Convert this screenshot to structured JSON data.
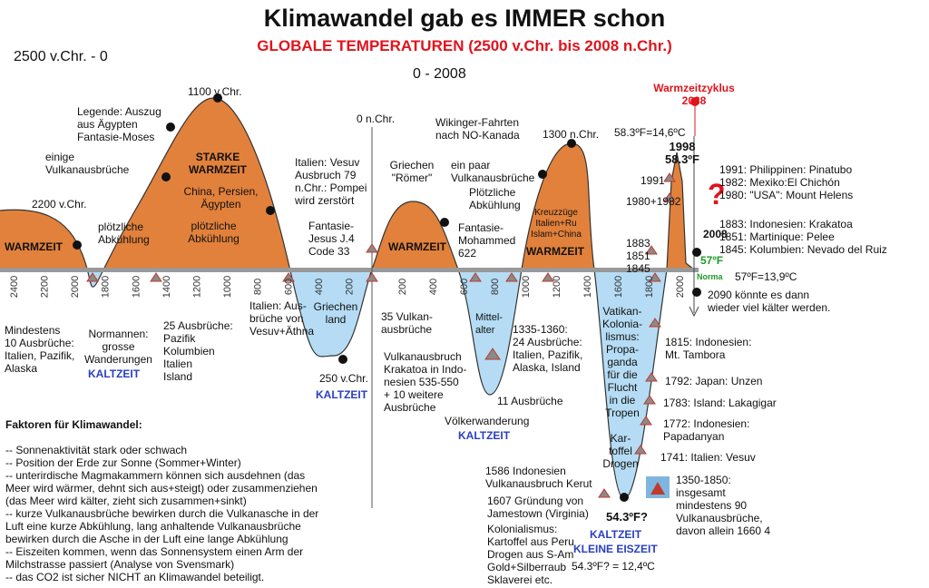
{
  "title": "Klimawandel gab es IMMER schon",
  "subtitle": "GLOBALE TEMPERATUREN (2500 v.Chr. bis 2008 n.Chr.)",
  "range_left": "2500 v.Chr. - 0",
  "range_right": "0 - 2008",
  "axis_left": [
    "2400",
    "2200",
    "2000",
    "1800",
    "1600",
    "1400",
    "1200",
    "1000",
    "800",
    "600",
    "400",
    "200"
  ],
  "axis_right": [
    "200",
    "400",
    "600",
    "800",
    "1000",
    "1200",
    "1400",
    "1600",
    "1800",
    "2000"
  ],
  "above": {
    "peak_1100": "1100 v.Chr.",
    "moses": "Legende: Auszug\naus Ägypten\nFantasie-Moses",
    "einige": "einige\nVulkanausbrüche",
    "starke": "STARKE\nWARMZEIT",
    "china": "China, Persien,\nÄgypten",
    "abk1": "plötzliche\nAbkühlung",
    "v2200": "2200 v.Chr.",
    "abk2": "plötzliche\nAbkühlung",
    "warm1": "WARMZEIT",
    "n0": "0 n.Chr.",
    "vesuv79": "Italien: Vesuv\nAusbruch 79\nn.Chr.: Pompei\nwird zerstört",
    "jesus": "Fantasie-\nJesus J.4\nCode 33",
    "roemer": "Griechen\n\"Römer\"",
    "warm2": "WARMZEIT",
    "wikinger": "Wikinger-Fahrten\nnach NO-Kanada",
    "n1300": "1300 n.Chr.",
    "paar": "ein paar\nVulkanausbrüche",
    "abk3": "Plötzliche\nAbkühlung",
    "mohammed": "Fantasie-\nMohammed\n622",
    "kreuz": "Kreuzzüge\nItalien+Ru\nIslam+China",
    "warm3": "WARMZEIT",
    "zyklus": "Warmzeitzyklus\n2038",
    "f583": "58.3ºF=14,6ºC",
    "y1998": "1998\n58.3ºF",
    "question": "?",
    "y1991": "1991",
    "y1980": "1980+1982",
    "y1883": "1883\n1851\n1845",
    "y2008": "2008",
    "f57": "57ºF",
    "norma": "Norma",
    "f57c": "57ºF=13,9ºC",
    "list1": "1991: Philippinen: Pinatubo\n1982: Mexiko:El Chichón\n1980: \"USA\": Mount Helens",
    "list2": "1883: Indonesien: Krakatoa\n1851: Martinique: Pelee\n1845: Kolumbien: Nevado del Ruiz",
    "y2090": "2090 könnte es dann\nwieder viel kälter werden."
  },
  "below": {
    "mind10": "Mindestens\n10 Ausbrüche:\nItalien, Pazifik,\nAlaska",
    "normannen": "Normannen:\ngrosse\nWanderungen",
    "kalt1": "KALTZEIT",
    "aus25": "25 Ausbrüche:\nPazifik\nKolumbien\nItalien\nIsland",
    "aetna": "Italien: Aus-\nbrüche von\nVesuv+Äthna",
    "griechen": "Griechen\nland",
    "v250": "250 v.Chr.",
    "kalt2": "KALTZEIT",
    "aus35": "35 Vulkan-\nausbrüche",
    "mittel": "Mittel-\nalter",
    "aus24": "1335-1360:\n24 Ausbrüche:\nItalien, Pazifik,\nAlaska, Island",
    "krakatoa": "Vulkanausbruch\nKrakatoa in Indo-\nnesien 535-550\n+ 10 weitere\nAusbrüche",
    "aus11": "11 Ausbrüche",
    "voelker": "Völkerwanderung",
    "kalt3": "KALTZEIT",
    "vatikan": "Vatikan-\nKolonia-\nlismus:\nPropa-\nganda\nfür die\nFlucht\nin die\nTropen",
    "kartoffel": "Kar-\ntoffel\nDrogen",
    "tambora": "1815: Indonesien:\nMt. Tambora",
    "unzen": "1792: Japan: Unzen",
    "laki": "1783: Island: Lakagigar",
    "papa": "1772: Indonesien:\nPapadanyan",
    "vesuv1741": "1741: Italien: Vesuv",
    "aus90": "1350-1850:\ninsgesamt\nmindestens 90\nVulkanausbrüche,\ndavon allein 1660 4",
    "kerut": "1586 Indonesien\nVulkanausbruch Kerut",
    "jamestown": "1607 Gründung von\nJamestown (Virginia)",
    "kolonial": "Kolonialismus:\nKartoffel aus Peru\nDrogen aus S-Am\nGold+Silberraub\nSklaverei etc.",
    "f543": "54.3ºF?",
    "kalt4": "KALTZEIT",
    "eiszeit": "KLEINE EISZEIT",
    "f543c": "54.3ºF? = 12,4ºC"
  },
  "factors": {
    "heading": "Faktoren für Klimawandel:",
    "items": [
      "-- Sonnenaktivität stark oder schwach",
      "-- Position der Erde zur Sonne (Sommer+Winter)",
      "-- unterirdische Magmakammern können sich ausdehnen (das\nMeer wird wärmer, dehnt sich aus+steigt) oder zusammenziehen\n(das Meer wird kälter, zieht sich zusammen+sinkt)",
      "-- kurze Vulkanausbrüche bewirken durch die Vulkanasche in der\nLuft eine kurze Abkühlung, lang anhaltende Vulkanausbrüche\nbewirken durch die Asche in der Luft eine lange Abkühlung",
      "-- Eiszeiten kommen, wenn das Sonnensystem einen Arm der\nMilchstrasse passiert (Analyse von Svensmark)",
      "-- das CO2 ist sicher NICHT an Klimawandel beteiligt."
    ]
  }
}
